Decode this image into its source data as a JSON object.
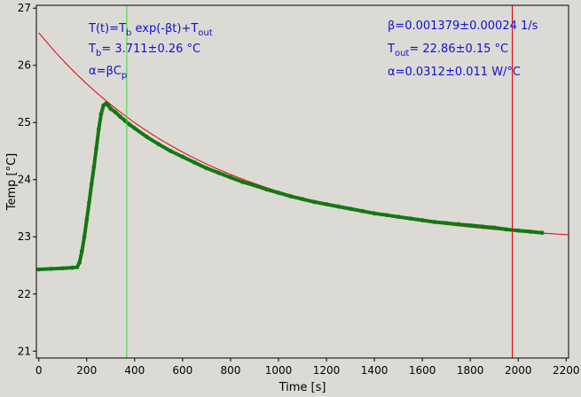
{
  "chart_data": {
    "type": "scatter",
    "xlabel": "Time [s]",
    "ylabel": "Temp [°C]",
    "xlim": [
      -10,
      2210
    ],
    "ylim": [
      20.88,
      27.05
    ],
    "xticks": [
      0,
      200,
      400,
      600,
      800,
      1000,
      1200,
      1400,
      1600,
      1800,
      2000,
      2200
    ],
    "yticks": [
      21,
      22,
      23,
      24,
      25,
      26,
      27
    ],
    "grid": false,
    "background": "#dcdad5",
    "colors": {
      "data": "#127812",
      "fit": "#e00000",
      "marker_green": "#33dd33",
      "marker_red": "#dd0000",
      "annotation": "#1010d0"
    },
    "fit": {
      "formula": "T(t)=Tb exp(-βt)+Tout",
      "Tb": 3.711,
      "beta": 0.001379,
      "Tout": 22.86,
      "t_range": [
        0,
        2210
      ]
    },
    "vertical_markers": [
      {
        "x": 367,
        "color": "green"
      },
      {
        "x": 1975,
        "color": "red"
      }
    ],
    "series": [
      {
        "style": "thick-points",
        "x": [
          0,
          50,
          100,
          140,
          160,
          170,
          180,
          190,
          200,
          210,
          220,
          230,
          240,
          250,
          260,
          270,
          280,
          290,
          300,
          320,
          340,
          360,
          380,
          400,
          450,
          500,
          550,
          600,
          650,
          700,
          750,
          800,
          850,
          900,
          950,
          1000,
          1050,
          1100,
          1150,
          1200,
          1250,
          1300,
          1350,
          1400,
          1450,
          1500,
          1550,
          1600,
          1650,
          1700,
          1750,
          1800,
          1850,
          1900,
          1950,
          2000,
          2050,
          2100
        ],
        "y": [
          22.43,
          22.44,
          22.45,
          22.46,
          22.47,
          22.55,
          22.75,
          23.0,
          23.3,
          23.6,
          23.92,
          24.22,
          24.55,
          24.88,
          25.15,
          25.3,
          25.33,
          25.3,
          25.24,
          25.18,
          25.1,
          25.03,
          24.96,
          24.9,
          24.75,
          24.62,
          24.5,
          24.4,
          24.3,
          24.2,
          24.12,
          24.04,
          23.96,
          23.9,
          23.83,
          23.77,
          23.71,
          23.66,
          23.61,
          23.57,
          23.53,
          23.49,
          23.45,
          23.41,
          23.38,
          23.35,
          23.32,
          23.29,
          23.26,
          23.24,
          23.22,
          23.2,
          23.18,
          23.16,
          23.13,
          23.11,
          23.09,
          23.07
        ]
      }
    ]
  },
  "annotations": {
    "formula": {
      "pre": "T(t)=T",
      "sub1": "b",
      "mid": " exp(-βt)+T",
      "sub2": "out"
    },
    "tb": {
      "pre": "T",
      "sub": "b",
      "post": "= 3.711±0.26 °C"
    },
    "alpha_def": {
      "pre": "α=βC",
      "sub": "p"
    },
    "beta": "β=0.001379±0.00024 1/s",
    "tout": {
      "pre": "T",
      "sub": "out",
      "post": "= 22.86±0.15 °C"
    },
    "alpha": "α=0.0312±0.011 W/°C"
  }
}
